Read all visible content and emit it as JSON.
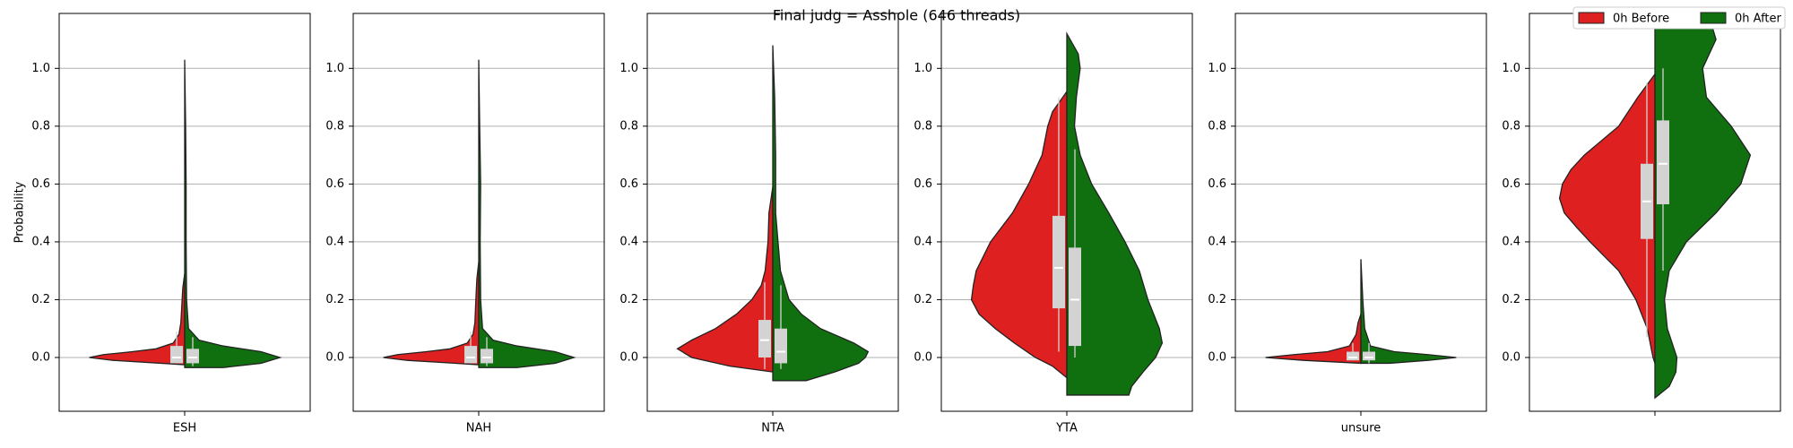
{
  "title": "Final judg = Asshole (646 threads)",
  "chart_data": [
    {
      "type": "violin",
      "ylabel": "Probability",
      "categories": [
        "ESH"
      ],
      "ylim": [
        -0.186,
        1.19
      ],
      "yticks": [
        {
          "value": 0,
          "label": "0.0"
        },
        0.2,
        0.4,
        0.6,
        0.8,
        {
          "value": 1,
          "label": "1.0"
        }
      ],
      "grid": true,
      "series": [
        {
          "color": "#df2020",
          "density": {
            "y": [
              -0.025,
              -0.01,
              0,
              0.01,
              0.02,
              0.03,
              0.05,
              0.08,
              0.12,
              0.18,
              0.24,
              0.29
            ],
            "width": [
              0,
              0.75,
              1,
              0.85,
              0.55,
              0.3,
              0.12,
              0.06,
              0.04,
              0.03,
              0.02,
              0
            ]
          },
          "box": {
            "whislo": -0.02,
            "q1": -0.02,
            "median": 0,
            "q3": 0.04,
            "whishi": 0.09
          }
        },
        {
          "color": "#107010",
          "density": {
            "y": [
              -0.035,
              -0.02,
              0,
              0.02,
              0.04,
              0.06,
              0.1,
              0.2,
              0.4,
              0.6,
              0.8,
              1.03
            ],
            "width": [
              0.4,
              0.8,
              1,
              0.8,
              0.4,
              0.15,
              0.04,
              0.02,
              0.015,
              0.015,
              0.01,
              0
            ]
          },
          "box": {
            "whislo": -0.03,
            "q1": -0.02,
            "median": 0,
            "q3": 0.03,
            "whishi": 0.07
          }
        }
      ]
    },
    {
      "type": "violin",
      "categories": [
        "NAH"
      ],
      "ylim": [
        -0.186,
        1.19
      ],
      "yticks": [
        {
          "value": 0,
          "label": "0.0"
        },
        0.2,
        0.4,
        0.6,
        0.8,
        {
          "value": 1,
          "label": "1.0"
        }
      ],
      "grid": true,
      "series": [
        {
          "color": "#df2020",
          "density": {
            "y": [
              -0.025,
              -0.01,
              0,
              0.01,
              0.02,
              0.03,
              0.05,
              0.08,
              0.12,
              0.2,
              0.27,
              0.33
            ],
            "width": [
              0,
              0.75,
              1,
              0.85,
              0.55,
              0.3,
              0.12,
              0.06,
              0.04,
              0.03,
              0.02,
              0
            ]
          },
          "box": {
            "whislo": -0.02,
            "q1": -0.02,
            "median": 0,
            "q3": 0.04,
            "whishi": 0.09
          }
        },
        {
          "color": "#107010",
          "density": {
            "y": [
              -0.035,
              -0.02,
              0,
              0.02,
              0.04,
              0.06,
              0.1,
              0.2,
              0.4,
              0.6,
              0.8,
              1.03
            ],
            "width": [
              0.4,
              0.8,
              1,
              0.8,
              0.4,
              0.15,
              0.04,
              0.02,
              0.015,
              0.02,
              0.01,
              0
            ]
          },
          "box": {
            "whislo": -0.03,
            "q1": -0.02,
            "median": 0,
            "q3": 0.03,
            "whishi": 0.07
          }
        }
      ]
    },
    {
      "type": "violin",
      "categories": [
        "NTA"
      ],
      "ylim": [
        -0.186,
        1.19
      ],
      "yticks": [
        {
          "value": 0,
          "label": "0.0"
        },
        0.2,
        0.4,
        0.6,
        0.8,
        {
          "value": 1,
          "label": "1.0"
        }
      ],
      "grid": true,
      "series": [
        {
          "color": "#df2020",
          "density": {
            "y": [
              -0.05,
              -0.03,
              0,
              0.03,
              0.06,
              0.1,
              0.15,
              0.2,
              0.25,
              0.3,
              0.4,
              0.5,
              0.59
            ],
            "width": [
              0,
              0.45,
              0.85,
              1,
              0.85,
              0.6,
              0.38,
              0.22,
              0.12,
              0.08,
              0.05,
              0.04,
              0
            ]
          },
          "box": {
            "whislo": -0.04,
            "q1": 0,
            "median": 0.06,
            "q3": 0.13,
            "whishi": 0.26
          }
        },
        {
          "color": "#107010",
          "density": {
            "y": [
              -0.08,
              -0.05,
              -0.02,
              0,
              0.02,
              0.05,
              0.1,
              0.15,
              0.2,
              0.3,
              0.5,
              0.7,
              0.9,
              1.08
            ],
            "width": [
              0.35,
              0.65,
              0.9,
              0.97,
              1,
              0.85,
              0.5,
              0.3,
              0.17,
              0.08,
              0.03,
              0.03,
              0.02,
              0
            ]
          },
          "box": {
            "whislo": -0.04,
            "q1": -0.02,
            "median": 0.02,
            "q3": 0.1,
            "whishi": 0.25
          }
        }
      ]
    },
    {
      "type": "violin",
      "categories": [
        "YTA"
      ],
      "ylim": [
        -0.186,
        1.19
      ],
      "yticks": [
        {
          "value": 0,
          "label": "0.0"
        },
        0.2,
        0.4,
        0.6,
        0.8,
        {
          "value": 1,
          "label": "1.0"
        }
      ],
      "grid": true,
      "series": [
        {
          "color": "#df2020",
          "density": {
            "y": [
              -0.07,
              -0.03,
              0,
              0.05,
              0.1,
              0.15,
              0.2,
              0.25,
              0.3,
              0.4,
              0.5,
              0.6,
              0.7,
              0.8,
              0.85,
              0.92
            ],
            "width": [
              0,
              0.15,
              0.33,
              0.55,
              0.75,
              0.92,
              1,
              0.98,
              0.95,
              0.8,
              0.57,
              0.4,
              0.26,
              0.2,
              0.15,
              0
            ]
          },
          "box": {
            "whislo": 0.02,
            "q1": 0.17,
            "median": 0.31,
            "q3": 0.49,
            "whishi": 0.9
          }
        },
        {
          "color": "#107010",
          "density": {
            "y": [
              -0.13,
              -0.1,
              -0.05,
              0,
              0.05,
              0.1,
              0.2,
              0.3,
              0.4,
              0.5,
              0.6,
              0.7,
              0.8,
              0.9,
              1.0,
              1.05,
              1.12
            ],
            "width": [
              0.65,
              0.68,
              0.8,
              0.93,
              1,
              0.97,
              0.85,
              0.76,
              0.61,
              0.44,
              0.26,
              0.14,
              0.08,
              0.1,
              0.14,
              0.12,
              0
            ]
          },
          "box": {
            "whislo": 0,
            "q1": 0.04,
            "median": 0.2,
            "q3": 0.38,
            "whishi": 0.72
          }
        }
      ]
    },
    {
      "type": "violin",
      "categories": [
        "unsure"
      ],
      "ylim": [
        -0.186,
        1.19
      ],
      "yticks": [
        {
          "value": 0,
          "label": "0.0"
        },
        0.2,
        0.4,
        0.6,
        0.8,
        {
          "value": 1,
          "label": "1.0"
        }
      ],
      "grid": true,
      "series": [
        {
          "color": "#df2020",
          "density": {
            "y": [
              -0.02,
              -0.01,
              0,
              0.01,
              0.02,
              0.04,
              0.08,
              0.12,
              0.15
            ],
            "width": [
              0,
              0.6,
              1,
              0.7,
              0.35,
              0.12,
              0.05,
              0.03,
              0
            ]
          },
          "box": {
            "whislo": -0.01,
            "q1": -0.01,
            "median": 0,
            "q3": 0.02,
            "whishi": 0.05
          }
        },
        {
          "color": "#107010",
          "density": {
            "y": [
              -0.02,
              -0.01,
              0,
              0.01,
              0.02,
              0.04,
              0.1,
              0.2,
              0.34
            ],
            "width": [
              0.3,
              0.7,
              1,
              0.7,
              0.35,
              0.1,
              0.04,
              0.02,
              0
            ]
          },
          "box": {
            "whislo": -0.02,
            "q1": -0.01,
            "median": 0,
            "q3": 0.02,
            "whishi": 0.05
          }
        }
      ]
    },
    {
      "type": "violin",
      "categories": [
        null
      ],
      "ylim": [
        -0.186,
        1.19
      ],
      "yticks": [
        {
          "value": 0,
          "label": "0.0"
        },
        0.2,
        0.4,
        0.6,
        0.8,
        {
          "value": 1,
          "label": "1.0"
        }
      ],
      "grid": true,
      "legend": "upper right",
      "series": [
        {
          "name": "0h Before",
          "color": "#df2020",
          "density": {
            "y": [
              -0.02,
              0,
              0.1,
              0.2,
              0.3,
              0.4,
              0.45,
              0.5,
              0.55,
              0.6,
              0.65,
              0.7,
              0.8,
              0.9,
              0.98
            ],
            "width": [
              0,
              0.02,
              0.08,
              0.2,
              0.38,
              0.68,
              0.82,
              0.95,
              1,
              0.97,
              0.88,
              0.74,
              0.38,
              0.18,
              0
            ]
          },
          "box": {
            "whislo": 0.07,
            "q1": 0.41,
            "median": 0.54,
            "q3": 0.67,
            "whishi": 0.95
          }
        },
        {
          "name": "0h After",
          "color": "#107010",
          "density": {
            "y": [
              -0.14,
              -0.1,
              -0.05,
              0,
              0.05,
              0.1,
              0.2,
              0.3,
              0.4,
              0.5,
              0.6,
              0.7,
              0.8,
              0.9,
              1.0,
              1.1,
              1.2
            ],
            "width": [
              0,
              0.15,
              0.22,
              0.23,
              0.18,
              0.13,
              0.1,
              0.15,
              0.33,
              0.64,
              0.9,
              1,
              0.8,
              0.54,
              0.5,
              0.64,
              0.55
            ]
          },
          "box": {
            "whislo": 0.3,
            "q1": 0.53,
            "median": 0.67,
            "q3": 0.82,
            "whishi": 1.0
          }
        }
      ]
    }
  ]
}
